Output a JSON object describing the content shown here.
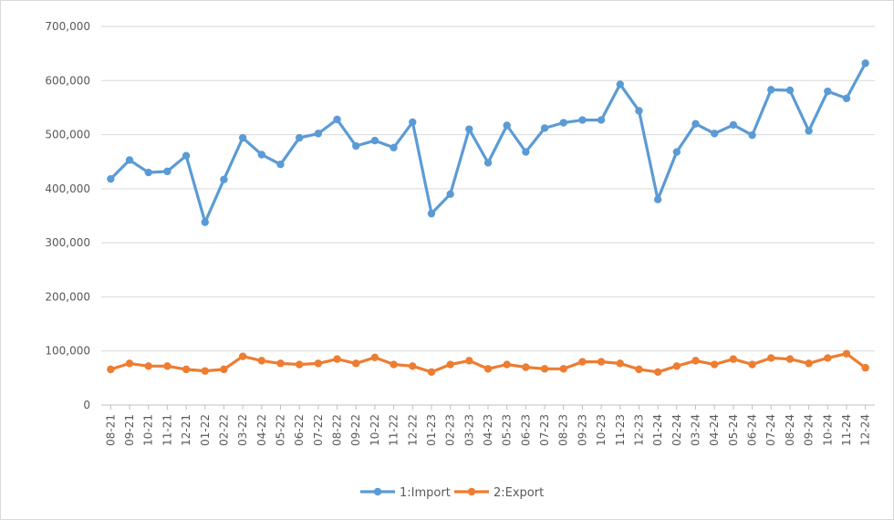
{
  "chart_data": {
    "type": "line",
    "title": "",
    "xlabel": "",
    "ylabel": "",
    "ylim": [
      0,
      700000
    ],
    "yticks": [
      0,
      100000,
      200000,
      300000,
      400000,
      500000,
      600000,
      700000
    ],
    "ytick_labels": [
      "0",
      "100,000",
      "200,000",
      "300,000",
      "400,000",
      "500,000",
      "600,000",
      "700,000"
    ],
    "grid": true,
    "legend_position": "bottom",
    "categories": [
      "08-21",
      "09-21",
      "10-21",
      "11-21",
      "12-21",
      "01-22",
      "02-22",
      "03-22",
      "04-22",
      "05-22",
      "06-22",
      "07-22",
      "08-22",
      "09-22",
      "10-22",
      "11-22",
      "12-22",
      "01-23",
      "02-23",
      "03-23",
      "04-23",
      "05-23",
      "06-23",
      "07-23",
      "08-23",
      "09-23",
      "10-23",
      "11-23",
      "12-23",
      "01-24",
      "02-24",
      "03-24",
      "04-24",
      "05-24",
      "06-24",
      "07-24",
      "08-24",
      "09-24",
      "10-24",
      "11-24",
      "12-24"
    ],
    "series": [
      {
        "name": "1:Import",
        "color": "#5b9bd5",
        "values": [
          418000,
          453000,
          430000,
          432000,
          461000,
          338000,
          417000,
          494000,
          463000,
          445000,
          494000,
          502000,
          528000,
          479000,
          489000,
          476000,
          523000,
          354000,
          390000,
          510000,
          448000,
          517000,
          468000,
          512000,
          522000,
          527000,
          527000,
          593000,
          544000,
          380000,
          468000,
          520000,
          502000,
          518000,
          499000,
          583000,
          582000,
          507000,
          580000,
          567000,
          632000
        ]
      },
      {
        "name": "2:Export",
        "color": "#ed7d31",
        "values": [
          66000,
          77000,
          72000,
          72000,
          66000,
          63000,
          66000,
          90000,
          82000,
          77000,
          75000,
          77000,
          85000,
          77000,
          88000,
          75000,
          72000,
          61000,
          75000,
          82000,
          67000,
          75000,
          70000,
          67000,
          67000,
          80000,
          80000,
          77000,
          66000,
          61000,
          72000,
          82000,
          75000,
          85000,
          75000,
          87000,
          85000,
          77000,
          87000,
          95000,
          69000
        ]
      }
    ]
  }
}
